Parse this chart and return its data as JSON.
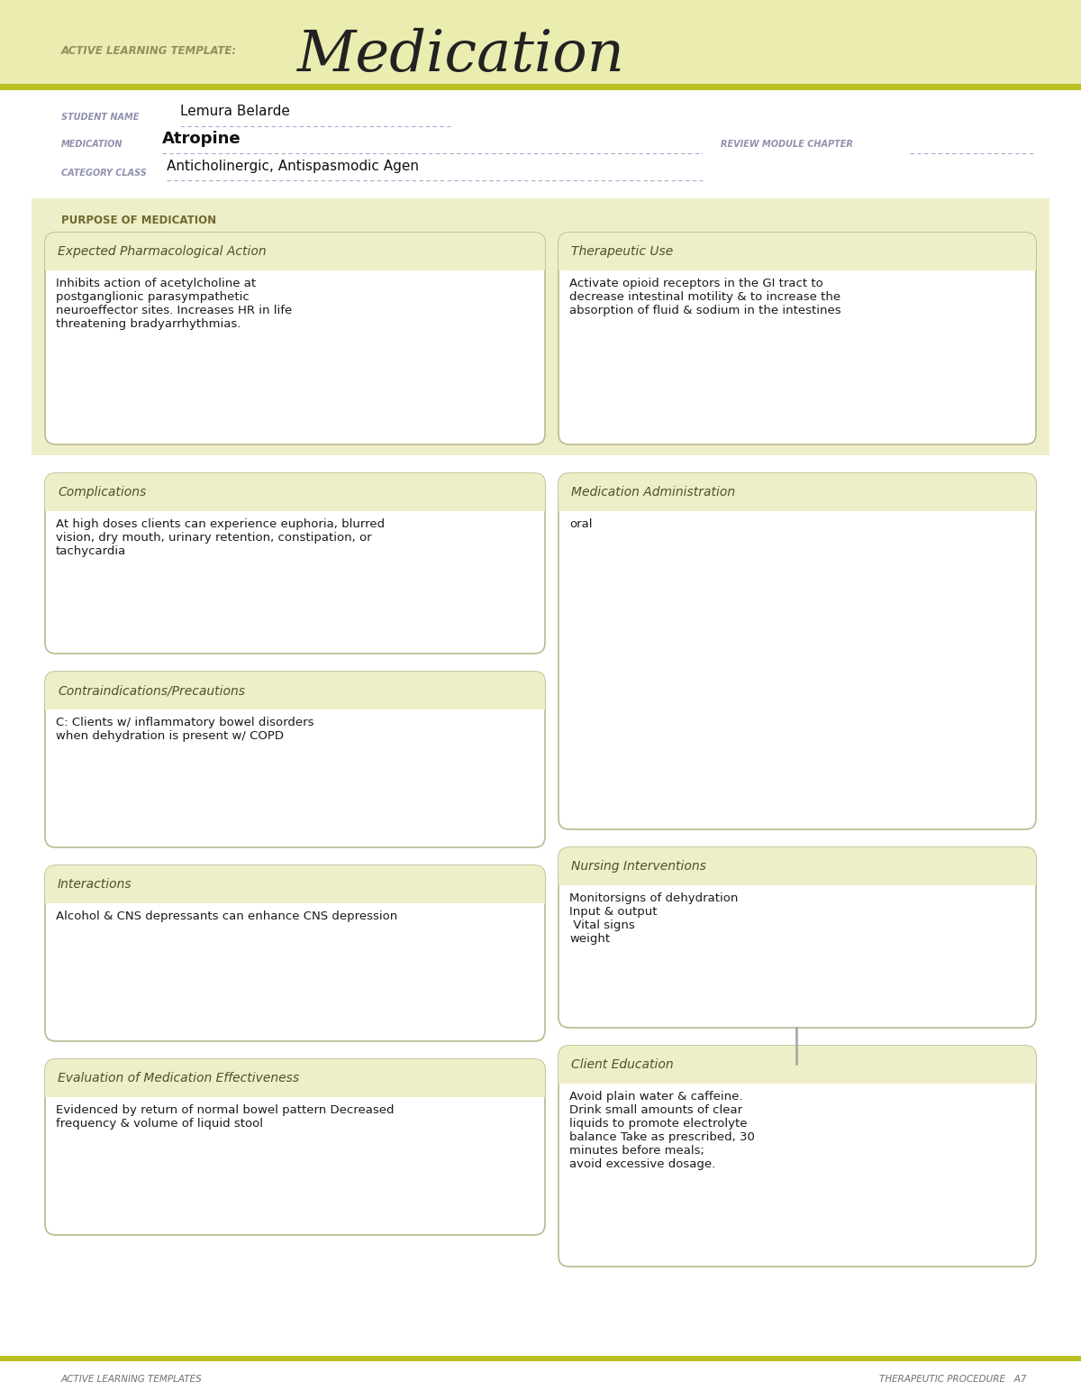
{
  "page_bg": "#ffffff",
  "header_bg": "#eaecb0",
  "box_bg": "#eeefc8",
  "box_border": "#b8ba90",
  "header_stripe_color": "#b8c020",
  "title_label": "ACTIVE LEARNING TEMPLATE:",
  "title_main": "Medication",
  "student_name_label": "STUDENT NAME",
  "student_name": "Lemura Belarde",
  "medication_label": "MEDICATION",
  "medication": "Atropine",
  "review_label": "REVIEW MODULE CHAPTER",
  "category_label": "CATEGORY CLASS",
  "category": "Anticholinergic, Antispasmodic Agen",
  "purpose_label": "PURPOSE OF MEDICATION",
  "box1_title": "Expected Pharmacological Action",
  "box1_text": "Inhibits action of acetylcholine at\npostganglionic parasympathetic\nneuroeffector sites. Increases HR in life\nthreatening bradyarrhythmias.",
  "box2_title": "Therapeutic Use",
  "box2_text": "Activate opioid receptors in the GI tract to\ndecrease intestinal motility & to increase the\nabsorption of fluid & sodium in the intestines",
  "box3_title": "Complications",
  "box3_text": "At high doses clients can experience euphoria, blurred\nvision, dry mouth, urinary retention, constipation, or\ntachycardia",
  "box4_title": "Medication Administration",
  "box4_text": "oral",
  "box5_title": "Contraindications/Precautions",
  "box5_text": "C: Clients w/ inflammatory bowel disorders\nwhen dehydration is present w/ COPD",
  "box6_title": "Nursing Interventions",
  "box6_text": "Monitorsigns of dehydration\nInput & output\n Vital signs\nweight",
  "box7_title": "Interactions",
  "box7_text": "Alcohol & CNS depressants can enhance CNS depression",
  "box8_title": "Client Education",
  "box8_text": "Avoid plain water & caffeine.\nDrink small amounts of clear\nliquids to promote electrolyte\nbalance Take as prescribed, 30\nminutes before meals;\navoid excessive dosage.",
  "box9_title": "Evaluation of Medication Effectiveness",
  "box9_text": "Evidenced by return of normal bowel pattern Decreased\nfrequency & volume of liquid stool",
  "footer_left": "ACTIVE LEARNING TEMPLATES",
  "footer_right": "THERAPEUTIC PROCEDURE   A7",
  "label_color": "#9090b0",
  "title_label_color": "#909060",
  "purpose_label_color": "#706830",
  "box_title_color": "#505028",
  "body_text_color": "#1a1a1a",
  "dash_color": "#aaaacc"
}
